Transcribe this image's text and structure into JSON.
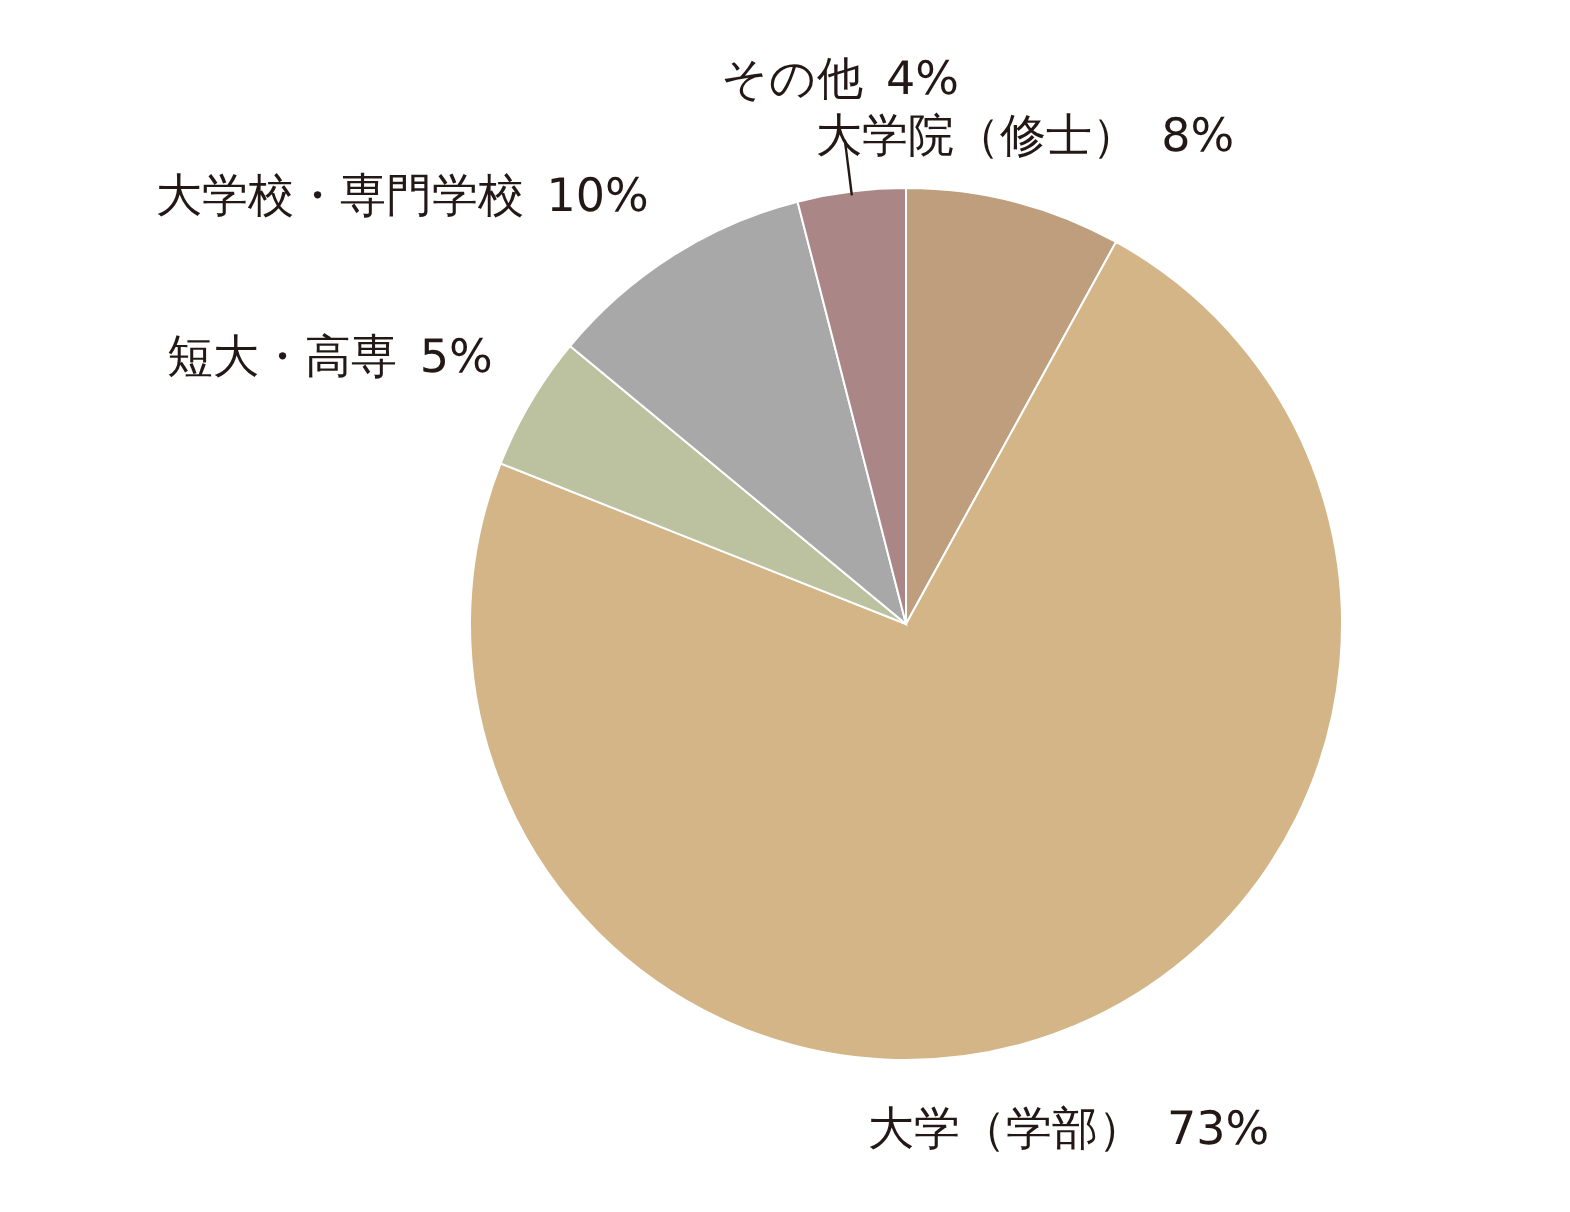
{
  "chart_data": {
    "type": "pie",
    "categories": [
      "大学院（修士）",
      "大学（学部）",
      "短大・高専",
      "大学校・専門学校",
      "その他"
    ],
    "values": [
      8,
      73,
      5,
      10,
      4
    ],
    "value_labels": [
      "8%",
      "73%",
      "5%",
      "10%",
      "4%"
    ],
    "colors": [
      "#bf9e7e",
      "#d4b587",
      "#bcc19f",
      "#a7a8a7",
      "#ab8686"
    ]
  }
}
